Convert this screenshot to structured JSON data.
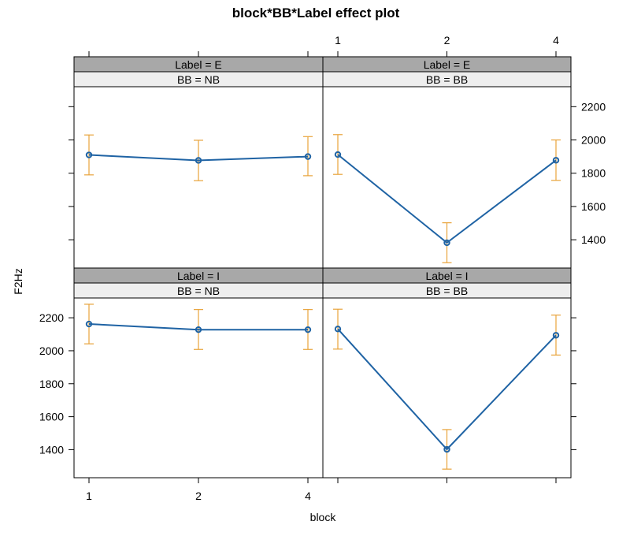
{
  "chart_data": {
    "type": "line",
    "title": "block*BB*Label effect plot",
    "xlabel": "block",
    "ylabel": "F2Hz",
    "categories": [
      "1",
      "2",
      "4"
    ],
    "yticks": [
      1400,
      1600,
      1800,
      2000,
      2200
    ],
    "ylim": [
      1230,
      2320
    ],
    "grid": false,
    "colors": {
      "line": "#1f63a4",
      "errorbar": "#e8a33a",
      "strip_dark": "#a8a8a8",
      "strip_light": "#eeeeee"
    },
    "panels": [
      {
        "id": "ne",
        "strip_top": "Label = E",
        "strip_bottom": "BB = NB",
        "values": [
          1910,
          1877,
          1900
        ],
        "lower": [
          1790,
          1755,
          1785
        ],
        "upper": [
          2030,
          1998,
          2020
        ]
      },
      {
        "id": "be",
        "strip_top": "Label = E",
        "strip_bottom": "BB = BB",
        "values": [
          1912,
          1382,
          1878
        ],
        "lower": [
          1793,
          1262,
          1757
        ],
        "upper": [
          2032,
          1502,
          2000
        ]
      },
      {
        "id": "ni",
        "strip_top": "Label = I",
        "strip_bottom": "BB = NB",
        "values": [
          2162,
          2128,
          2128
        ],
        "lower": [
          2042,
          2008,
          2008
        ],
        "upper": [
          2282,
          2250,
          2250
        ]
      },
      {
        "id": "bi",
        "strip_top": "Label = I",
        "strip_bottom": "BB = BB",
        "values": [
          2132,
          1402,
          2094
        ],
        "lower": [
          2010,
          1282,
          1974
        ],
        "upper": [
          2252,
          1522,
          2216
        ]
      }
    ]
  }
}
